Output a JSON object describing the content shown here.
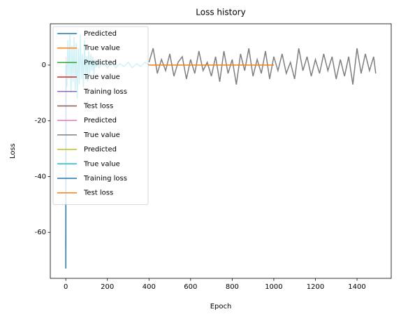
{
  "chart_data": {
    "type": "line",
    "title": "Loss history",
    "xlabel": "Epoch",
    "ylabel": "Loss",
    "xlim": [
      -74.5,
      1564.5
    ],
    "ylim": [
      -76.5,
      14.8
    ],
    "xticks": [
      0,
      200,
      400,
      600,
      800,
      1000,
      1200,
      1400
    ],
    "yticks": [
      -60,
      -40,
      -20,
      0
    ],
    "legend": "upper left",
    "series": [
      {
        "name": "Predicted",
        "color": "#1f77b4",
        "x": [
          0,
          10
        ],
        "values": [
          0,
          0
        ]
      },
      {
        "name": "True value",
        "color": "#ff7f0e",
        "x": [
          0,
          10
        ],
        "values": [
          0,
          0
        ]
      },
      {
        "name": "Predicted",
        "color": "#2ca02c",
        "x": [
          0,
          10
        ],
        "values": [
          0,
          0
        ]
      },
      {
        "name": "True value",
        "color": "#d62728",
        "x": [
          0,
          10
        ],
        "values": [
          0,
          0
        ]
      },
      {
        "name": "Training loss",
        "color": "#9467bd",
        "x": [
          0,
          10
        ],
        "values": [
          0,
          0
        ]
      },
      {
        "name": "Test loss",
        "color": "#8c564b",
        "x": [
          0,
          10
        ],
        "values": [
          0,
          0
        ]
      },
      {
        "name": "Predicted",
        "color": "#e377c2",
        "x": [
          0,
          1,
          2
        ],
        "values": [
          -66,
          3,
          0
        ]
      },
      {
        "name": "True value",
        "color": "#7f7f7f",
        "x": [
          400,
          420,
          440,
          460,
          480,
          500,
          520,
          540,
          560,
          580,
          600,
          620,
          640,
          660,
          680,
          700,
          720,
          740,
          760,
          780,
          800,
          820,
          840,
          860,
          880,
          900,
          920,
          940,
          960,
          980,
          1000,
          1020,
          1040,
          1060,
          1080,
          1100,
          1120,
          1140,
          1160,
          1180,
          1200,
          1220,
          1240,
          1260,
          1280,
          1300,
          1320,
          1340,
          1360,
          1380,
          1400,
          1420,
          1440,
          1460,
          1480,
          1490
        ],
        "values": [
          1,
          6,
          -3,
          2,
          -2,
          4,
          -4,
          1,
          3,
          -5,
          2,
          -3,
          5,
          -2,
          1,
          -4,
          3,
          -6,
          5,
          -3,
          2,
          -7,
          4,
          -2,
          6,
          -4,
          2,
          -3,
          5,
          -5,
          3,
          -2,
          4,
          -3,
          1,
          -5,
          6,
          -2,
          3,
          -4,
          2,
          -3,
          4,
          -2,
          3,
          -5,
          2,
          -4,
          3,
          -7,
          6,
          -3,
          4,
          -2,
          3,
          -3
        ]
      },
      {
        "name": "Predicted",
        "color": "#bcbd22",
        "x": [
          0,
          10
        ],
        "values": [
          0,
          0
        ]
      },
      {
        "name": "True value",
        "color": "#17becf",
        "x": [
          0,
          5,
          10,
          15,
          20,
          25,
          30,
          35,
          40,
          45,
          50,
          55,
          60,
          65,
          70,
          75,
          80,
          85,
          90,
          95,
          100,
          105,
          110,
          115,
          120,
          125,
          130,
          135,
          140,
          145,
          150,
          160,
          180,
          200,
          220,
          240,
          260,
          280,
          300,
          320,
          340,
          360,
          380,
          400
        ],
        "values": [
          0,
          -8,
          9,
          -5,
          11,
          -10,
          7,
          -6,
          10,
          -9,
          8,
          -12,
          6,
          -7,
          11,
          -5,
          4,
          -8,
          9,
          -4,
          3,
          -6,
          5,
          -3,
          4,
          -2,
          3,
          -4,
          2,
          -1,
          1,
          -1,
          1,
          -1,
          1,
          -1,
          0.5,
          -0.5,
          1,
          -1,
          0.5,
          -0.5,
          1,
          0
        ]
      },
      {
        "name": "Training loss",
        "color": "#1f77b4",
        "x": [
          0,
          1,
          2,
          3
        ],
        "values": [
          -73,
          -2,
          0,
          0
        ]
      },
      {
        "name": "Test loss",
        "color": "#ff7f0e",
        "x": [
          400,
          500,
          600,
          700,
          800,
          900,
          1000
        ],
        "values": [
          0,
          0,
          0,
          0,
          0,
          0,
          0
        ]
      }
    ]
  }
}
